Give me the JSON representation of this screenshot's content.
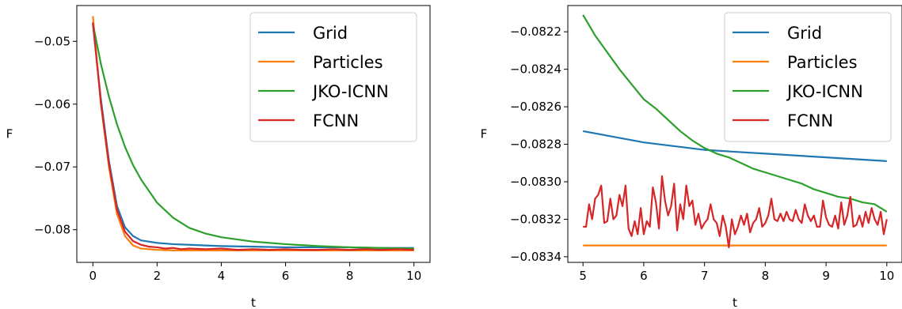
{
  "chart_data": [
    {
      "type": "line",
      "xlabel": "t",
      "ylabel": "F",
      "xlim": [
        -0.5,
        10.5
      ],
      "ylim": [
        -0.0852,
        -0.0443
      ],
      "xticks": [
        0,
        2,
        4,
        6,
        8,
        10
      ],
      "xtick_labels": [
        "0",
        "2",
        "4",
        "6",
        "8",
        "10"
      ],
      "yticks": [
        -0.05,
        -0.06,
        -0.07,
        -0.08
      ],
      "ytick_labels": [
        "−0.05",
        "−0.06",
        "−0.07",
        "−0.08"
      ],
      "grid": false,
      "legend": "top-right",
      "series": [
        {
          "name": "Grid",
          "color": "#1f77b4",
          "x": [
            0,
            0.25,
            0.5,
            0.75,
            1.0,
            1.25,
            1.5,
            2,
            2.5,
            3,
            4,
            5,
            6,
            7,
            8,
            9,
            10
          ],
          "y": [
            -0.0472,
            -0.0592,
            -0.069,
            -0.0762,
            -0.0796,
            -0.081,
            -0.0817,
            -0.0821,
            -0.0823,
            -0.0824,
            -0.0826,
            -0.0827,
            -0.0828,
            -0.0828,
            -0.0828,
            -0.0829,
            -0.0829
          ]
        },
        {
          "name": "Particles",
          "color": "#ff7f0e",
          "x": [
            0,
            0.25,
            0.5,
            0.75,
            1.0,
            1.25,
            1.5,
            2,
            2.5,
            3,
            4,
            5,
            6,
            7,
            8,
            9,
            10
          ],
          "y": [
            -0.046,
            -0.06,
            -0.07,
            -0.0775,
            -0.081,
            -0.0825,
            -0.083,
            -0.0832,
            -0.0833,
            -0.0833,
            -0.0833,
            -0.0833,
            -0.0833,
            -0.0833,
            -0.0833,
            -0.0833,
            -0.0833
          ]
        },
        {
          "name": "JKO-ICNN",
          "color": "#2ca02c",
          "x": [
            0,
            0.25,
            0.5,
            0.75,
            1.0,
            1.25,
            1.5,
            2,
            2.5,
            3,
            3.5,
            4,
            5,
            6,
            7,
            8,
            9,
            10
          ],
          "y": [
            -0.0472,
            -0.0536,
            -0.0588,
            -0.0632,
            -0.0668,
            -0.0697,
            -0.072,
            -0.0757,
            -0.0781,
            -0.0797,
            -0.0806,
            -0.0812,
            -0.0819,
            -0.0823,
            -0.0826,
            -0.0828,
            -0.0829,
            -0.083
          ]
        },
        {
          "name": "FCNN",
          "color": "#d62728",
          "x": [
            0,
            0.25,
            0.5,
            0.75,
            1.0,
            1.25,
            1.5,
            1.75,
            2,
            2.25,
            2.5,
            2.75,
            3,
            3.5,
            4,
            4.5,
            5,
            5.5,
            6,
            6.5,
            7,
            7.5,
            8,
            8.5,
            9,
            9.5,
            10
          ],
          "y": [
            -0.047,
            -0.0598,
            -0.0695,
            -0.0768,
            -0.0803,
            -0.0818,
            -0.0824,
            -0.0827,
            -0.0828,
            -0.083,
            -0.0829,
            -0.0831,
            -0.083,
            -0.0831,
            -0.083,
            -0.0832,
            -0.0831,
            -0.0832,
            -0.0831,
            -0.0832,
            -0.0832,
            -0.0831,
            -0.0832,
            -0.0831,
            -0.0832,
            -0.0831,
            -0.0832
          ]
        }
      ]
    },
    {
      "type": "line",
      "xlabel": "t",
      "ylabel": "F",
      "xlim": [
        4.75,
        10.25
      ],
      "ylim": [
        -0.08343,
        -0.08206
      ],
      "xticks": [
        5,
        6,
        7,
        8,
        9,
        10
      ],
      "xtick_labels": [
        "5",
        "6",
        "7",
        "8",
        "9",
        "10"
      ],
      "yticks": [
        -0.0822,
        -0.0824,
        -0.0826,
        -0.0828,
        -0.083,
        -0.0832,
        -0.0834
      ],
      "ytick_labels": [
        "−0.0822",
        "−0.0824",
        "−0.0826",
        "−0.0828",
        "−0.0830",
        "−0.0832",
        "−0.0834"
      ],
      "grid": false,
      "legend": "top-right",
      "series": [
        {
          "name": "Grid",
          "color": "#1f77b4",
          "x": [
            5,
            5.5,
            6,
            6.5,
            7,
            7.5,
            8,
            8.5,
            9,
            9.5,
            10
          ],
          "y": [
            -0.08273,
            -0.08276,
            -0.08279,
            -0.08281,
            -0.08283,
            -0.08284,
            -0.08285,
            -0.08286,
            -0.08287,
            -0.08288,
            -0.08289
          ]
        },
        {
          "name": "Particles",
          "color": "#ff7f0e",
          "x": [
            5,
            10
          ],
          "y": [
            -0.08334,
            -0.08334
          ]
        },
        {
          "name": "JKO-ICNN",
          "color": "#2ca02c",
          "x": [
            5,
            5.2,
            5.4,
            5.6,
            5.8,
            6.0,
            6.2,
            6.4,
            6.6,
            6.8,
            7.0,
            7.2,
            7.4,
            7.6,
            7.8,
            8.0,
            8.2,
            8.4,
            8.6,
            8.8,
            9.0,
            9.2,
            9.4,
            9.6,
            9.8,
            10.0
          ],
          "y": [
            -0.08211,
            -0.08222,
            -0.08231,
            -0.0824,
            -0.08248,
            -0.08256,
            -0.08261,
            -0.08267,
            -0.08273,
            -0.08278,
            -0.08282,
            -0.08285,
            -0.08287,
            -0.0829,
            -0.08293,
            -0.08295,
            -0.08297,
            -0.08299,
            -0.08301,
            -0.08304,
            -0.08306,
            -0.08308,
            -0.08309,
            -0.08311,
            -0.08312,
            -0.08316
          ]
        },
        {
          "name": "FCNN",
          "color": "#d62728",
          "x": [
            5.0,
            5.05,
            5.1,
            5.15,
            5.2,
            5.25,
            5.3,
            5.35,
            5.4,
            5.45,
            5.5,
            5.55,
            5.6,
            5.65,
            5.7,
            5.75,
            5.8,
            5.85,
            5.9,
            5.95,
            6.0,
            6.05,
            6.1,
            6.15,
            6.2,
            6.25,
            6.3,
            6.35,
            6.4,
            6.45,
            6.5,
            6.55,
            6.6,
            6.65,
            6.7,
            6.75,
            6.8,
            6.85,
            6.9,
            6.95,
            7.0,
            7.05,
            7.1,
            7.15,
            7.2,
            7.25,
            7.3,
            7.35,
            7.4,
            7.45,
            7.5,
            7.55,
            7.6,
            7.65,
            7.7,
            7.75,
            7.8,
            7.85,
            7.9,
            7.95,
            8.0,
            8.05,
            8.1,
            8.15,
            8.2,
            8.25,
            8.3,
            8.35,
            8.4,
            8.45,
            8.5,
            8.55,
            8.6,
            8.65,
            8.7,
            8.75,
            8.8,
            8.85,
            8.9,
            8.95,
            9.0,
            9.05,
            9.1,
            9.15,
            9.2,
            9.25,
            9.3,
            9.35,
            9.4,
            9.45,
            9.5,
            9.55,
            9.6,
            9.65,
            9.7,
            9.75,
            9.8,
            9.85,
            9.9,
            9.95,
            10.0
          ],
          "y": [
            -0.08324,
            -0.08324,
            -0.08312,
            -0.0832,
            -0.08309,
            -0.08307,
            -0.08302,
            -0.08322,
            -0.08321,
            -0.08309,
            -0.0832,
            -0.08318,
            -0.08307,
            -0.08313,
            -0.08302,
            -0.08325,
            -0.08329,
            -0.08321,
            -0.08328,
            -0.08314,
            -0.08328,
            -0.08321,
            -0.08324,
            -0.08303,
            -0.08311,
            -0.08325,
            -0.08297,
            -0.0831,
            -0.08318,
            -0.08313,
            -0.08301,
            -0.08326,
            -0.08312,
            -0.0832,
            -0.08302,
            -0.08313,
            -0.0831,
            -0.08323,
            -0.08317,
            -0.08325,
            -0.08322,
            -0.0832,
            -0.08312,
            -0.0832,
            -0.08322,
            -0.08329,
            -0.08318,
            -0.08324,
            -0.08335,
            -0.0832,
            -0.08328,
            -0.08324,
            -0.08318,
            -0.08323,
            -0.08317,
            -0.08327,
            -0.08322,
            -0.0832,
            -0.08314,
            -0.08324,
            -0.08322,
            -0.08318,
            -0.08309,
            -0.0832,
            -0.08321,
            -0.08317,
            -0.08321,
            -0.08316,
            -0.0832,
            -0.08321,
            -0.08315,
            -0.0832,
            -0.08322,
            -0.08312,
            -0.08318,
            -0.08321,
            -0.08318,
            -0.08324,
            -0.08324,
            -0.0831,
            -0.08319,
            -0.08323,
            -0.08324,
            -0.08318,
            -0.08325,
            -0.08311,
            -0.08323,
            -0.08318,
            -0.08308,
            -0.08324,
            -0.08323,
            -0.08318,
            -0.08324,
            -0.08316,
            -0.08322,
            -0.08314,
            -0.0832,
            -0.08323,
            -0.08316,
            -0.08328,
            -0.0832
          ]
        }
      ]
    }
  ]
}
